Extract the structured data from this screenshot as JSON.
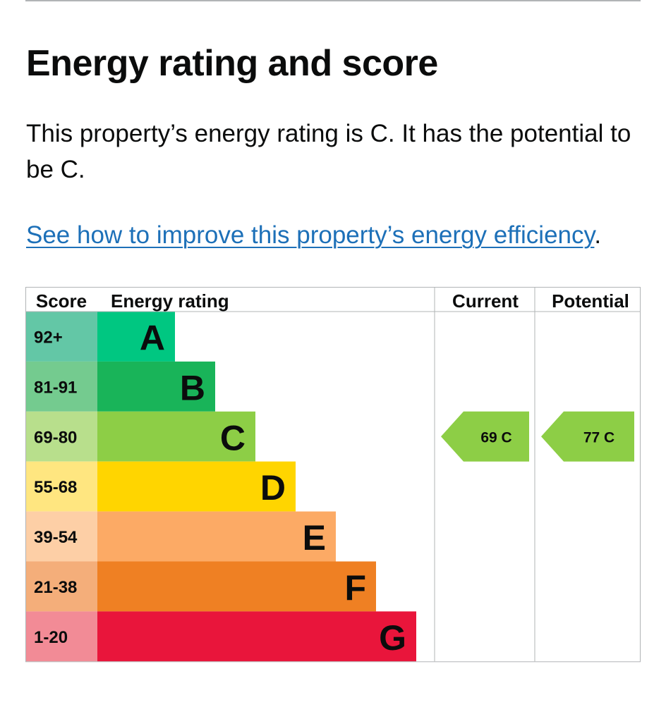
{
  "heading": "Energy rating and score",
  "summary_text": "This property’s energy rating is C. It has the potential to be C.",
  "improve": {
    "link_text": "See how to improve this property’s energy efficiency",
    "trailing": "."
  },
  "chart_data": {
    "type": "bar",
    "headers": {
      "score": "Score",
      "rating": "Energy rating",
      "current": "Current",
      "potential": "Potential"
    },
    "bands": [
      {
        "score_range": "92+",
        "letter": "A",
        "bar_color": "#00c781",
        "score_color": "#63c7a6"
      },
      {
        "score_range": "81-91",
        "letter": "B",
        "bar_color": "#19b459",
        "score_color": "#74cb8f"
      },
      {
        "score_range": "69-80",
        "letter": "C",
        "bar_color": "#8dce46",
        "score_color": "#b8df8c"
      },
      {
        "score_range": "55-68",
        "letter": "D",
        "bar_color": "#ffd500",
        "score_color": "#ffe680"
      },
      {
        "score_range": "39-54",
        "letter": "E",
        "bar_color": "#fcaa65",
        "score_color": "#fdcfa6"
      },
      {
        "score_range": "21-38",
        "letter": "F",
        "bar_color": "#ef8023",
        "score_color": "#f4ae7a"
      },
      {
        "score_range": "1-20",
        "letter": "G",
        "bar_color": "#e9153b",
        "score_color": "#f28b96"
      }
    ],
    "current": {
      "score": 69,
      "letter": "C",
      "label": "69 C",
      "color": "#8dce46"
    },
    "potential": {
      "score": 77,
      "letter": "C",
      "label": "77 C",
      "color": "#8dce46"
    }
  }
}
